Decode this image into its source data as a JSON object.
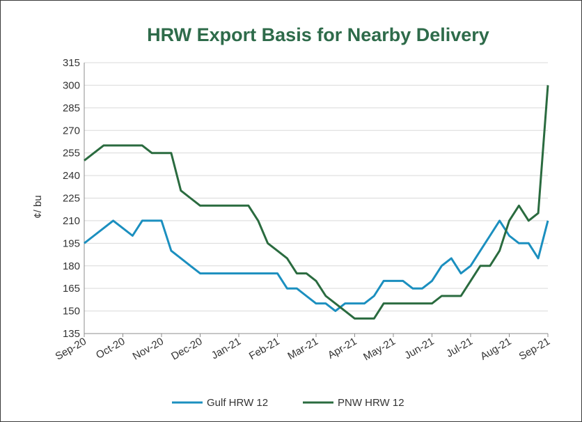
{
  "colors": {
    "title": "#2e6b4a",
    "gulf": "#1b8fbf",
    "pnw": "#2a6b3f",
    "grid": "#d9d9d9",
    "axis": "#8c8c8c"
  },
  "chart_data": {
    "type": "line",
    "title": "HRW Export Basis for Nearby Delivery",
    "ylabel": "¢/ bu",
    "xlabel": "",
    "ylim": [
      135,
      315
    ],
    "yticks": [
      135,
      150,
      165,
      180,
      195,
      210,
      225,
      240,
      255,
      270,
      285,
      300,
      315
    ],
    "x_tick_labels": [
      "Sep-20",
      "Oct-20",
      "Nov-20",
      "Dec-20",
      "Jan-21",
      "Feb-21",
      "Mar-21",
      "Apr-21",
      "May-21",
      "Jun-21",
      "Jul-21",
      "Aug-21",
      "Sep-21"
    ],
    "x_range": [
      0,
      12
    ],
    "grid": "horizontal",
    "legend": "bottom",
    "series": [
      {
        "name": "Gulf HRW 12",
        "x": [
          0,
          0.25,
          0.5,
          0.75,
          1.0,
          1.25,
          1.5,
          1.75,
          2.0,
          2.25,
          2.5,
          2.75,
          3.0,
          3.25,
          3.5,
          3.75,
          4.0,
          4.25,
          4.5,
          4.75,
          5.0,
          5.25,
          5.5,
          5.75,
          6.0,
          6.25,
          6.5,
          6.75,
          7.0,
          7.25,
          7.5,
          7.75,
          8.0,
          8.25,
          8.5,
          8.75,
          9.0,
          9.25,
          9.5,
          9.75,
          10.0,
          10.25,
          10.5,
          10.75,
          11.0,
          11.25,
          11.5,
          11.75,
          12.0
        ],
        "values": [
          195,
          200,
          205,
          210,
          205,
          200,
          210,
          210,
          210,
          190,
          185,
          180,
          175,
          175,
          175,
          175,
          175,
          175,
          175,
          175,
          175,
          165,
          165,
          160,
          155,
          155,
          150,
          155,
          155,
          155,
          160,
          170,
          170,
          170,
          165,
          165,
          170,
          180,
          185,
          175,
          180,
          190,
          200,
          210,
          200,
          195,
          195,
          185,
          210
        ]
      },
      {
        "name": "PNW HRW 12",
        "x": [
          0,
          0.25,
          0.5,
          0.75,
          1.0,
          1.25,
          1.5,
          1.75,
          2.0,
          2.25,
          2.5,
          2.75,
          3.0,
          3.25,
          3.5,
          3.75,
          4.0,
          4.25,
          4.5,
          4.75,
          5.0,
          5.25,
          5.5,
          5.75,
          6.0,
          6.25,
          6.5,
          6.75,
          7.0,
          7.25,
          7.5,
          7.75,
          8.0,
          8.25,
          8.5,
          8.75,
          9.0,
          9.25,
          9.5,
          9.75,
          10.0,
          10.25,
          10.5,
          10.75,
          11.0,
          11.25,
          11.5,
          11.75,
          12.0
        ],
        "values": [
          250,
          255,
          260,
          260,
          260,
          260,
          260,
          255,
          255,
          255,
          230,
          225,
          220,
          220,
          220,
          220,
          220,
          220,
          210,
          195,
          190,
          185,
          175,
          175,
          170,
          160,
          155,
          150,
          145,
          145,
          145,
          155,
          155,
          155,
          155,
          155,
          155,
          160,
          160,
          160,
          170,
          180,
          180,
          190,
          210,
          220,
          210,
          215,
          300
        ]
      }
    ]
  }
}
